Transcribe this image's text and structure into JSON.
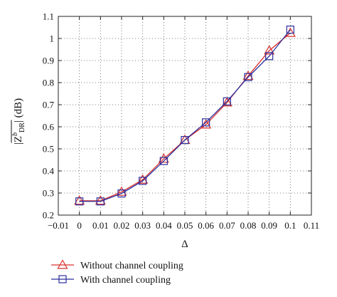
{
  "chart_data": {
    "type": "line",
    "title": "",
    "xlabel": "Δ",
    "ylabel": "|Z",
    "ylabel_sup": "b",
    "ylabel_sub": "DR",
    "ylabel_unit": "| (dB)",
    "xlim": [
      -0.01,
      0.11
    ],
    "ylim": [
      0.2,
      1.1
    ],
    "xticks": [
      -0.01,
      0,
      0.01,
      0.02,
      0.03,
      0.04,
      0.05,
      0.06,
      0.07,
      0.08,
      0.09,
      0.1,
      0.11
    ],
    "xtick_labels": [
      "−0.01",
      "0",
      "0.01",
      "0.02",
      "0.03",
      "0.04",
      "0.05",
      "0.06",
      "0.07",
      "0.08",
      "0.09",
      "0.1",
      "0.11"
    ],
    "yticks": [
      0.2,
      0.3,
      0.4,
      0.5,
      0.6,
      0.7,
      0.8,
      0.9,
      1,
      1.1
    ],
    "ytick_labels": [
      "0.2",
      "0.3",
      "0.4",
      "0.5",
      "0.6",
      "0.7",
      "0.8",
      "0.9",
      "1",
      "1.1"
    ],
    "grid": true,
    "grid_style": "dotted",
    "legend_position": "below",
    "x": [
      0,
      0.01,
      0.02,
      0.03,
      0.04,
      0.05,
      0.06,
      0.07,
      0.08,
      0.09,
      0.1
    ],
    "series": [
      {
        "name": "Without channel coupling",
        "color": "#d9322e",
        "marker": "triangle",
        "values": [
          0.265,
          0.265,
          0.305,
          0.36,
          0.455,
          0.54,
          0.61,
          0.71,
          0.83,
          0.945,
          1.025
        ]
      },
      {
        "name": "With channel coupling",
        "color": "#2b2f9e",
        "marker": "square",
        "values": [
          0.262,
          0.262,
          0.298,
          0.355,
          0.445,
          0.54,
          0.62,
          0.715,
          0.825,
          0.92,
          1.04
        ]
      }
    ]
  }
}
